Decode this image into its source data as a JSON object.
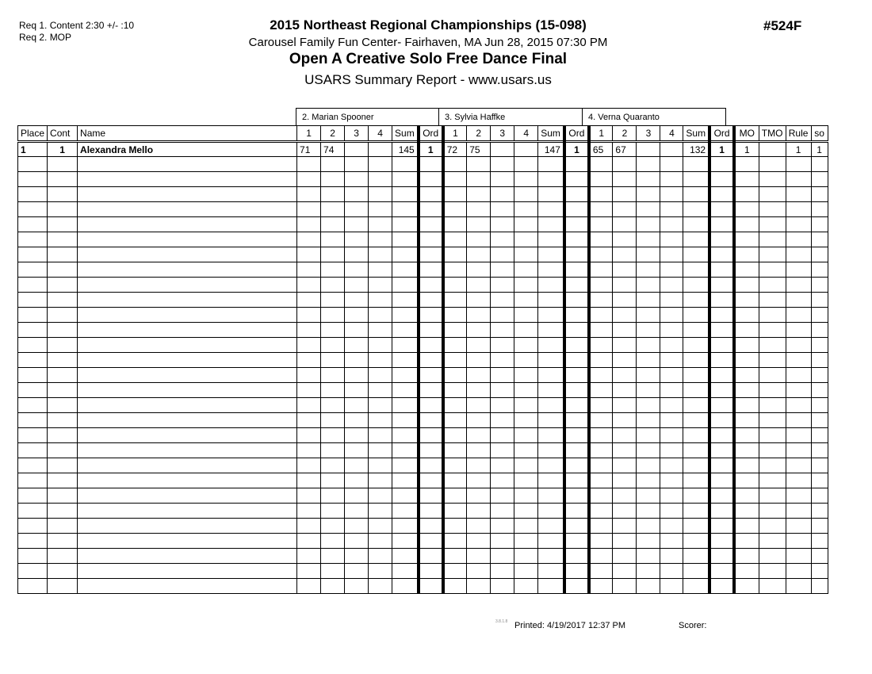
{
  "requirements": [
    "Req  1.  Content 2:30 +/- :10",
    "Req  2.  MOP"
  ],
  "header": {
    "title": "2015 Northeast Regional Championships (15-098)",
    "venue": "Carousel Family Fun Center- Fairhaven, MA  Jun 28, 2015  07:30 PM",
    "event": "Open A Creative Solo Free Dance Final",
    "report": "USARS Summary Report - www.usars.us",
    "event_number": "#524F"
  },
  "judges": [
    "2.  Marian Spooner",
    "3.  Sylvia Haffke",
    "4.  Verna Quaranto"
  ],
  "columns": [
    "Place",
    "Cont",
    "Name",
    "1",
    "2",
    "3",
    "4",
    "Sum",
    "Ord",
    "1",
    "2",
    "3",
    "4",
    "Sum",
    "Ord",
    "1",
    "2",
    "3",
    "4",
    "Sum",
    "Ord",
    "MO",
    "TMO",
    "Rule",
    "so"
  ],
  "rows": [
    [
      "1",
      "1",
      "Alexandra Mello",
      "71",
      "74",
      "",
      "",
      "145",
      "1",
      "72",
      "75",
      "",
      "",
      "147",
      "1",
      "65",
      "67",
      "",
      "",
      "132",
      "1",
      "1",
      "",
      "1",
      "1"
    ]
  ],
  "footer": {
    "version": "3.8.1.8",
    "printed": "Printed:  4/19/2017  12:37 PM",
    "scorer": "Scorer:"
  }
}
